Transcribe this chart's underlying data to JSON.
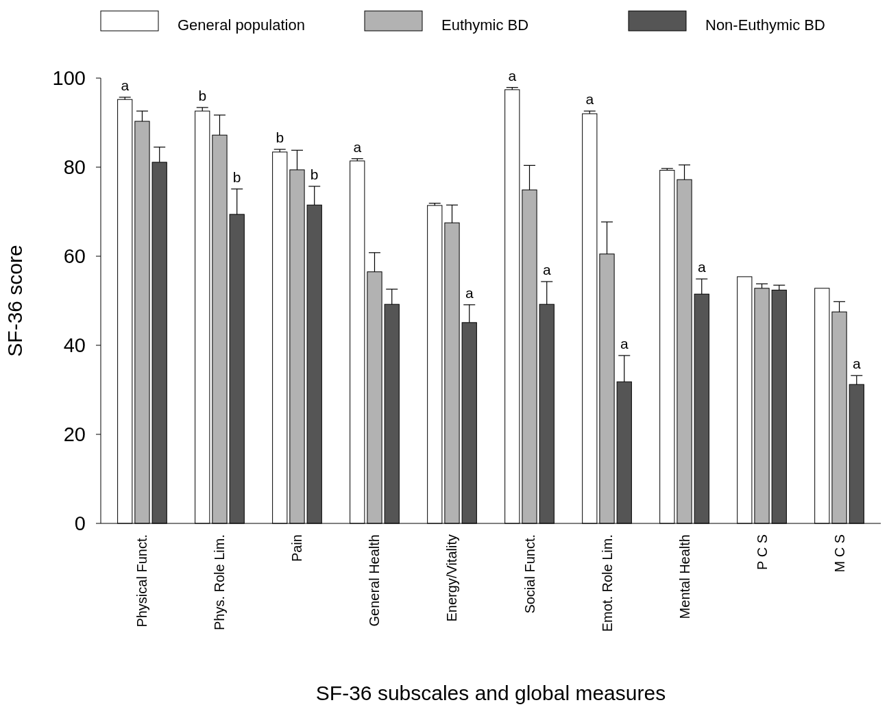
{
  "chart_data": {
    "type": "bar",
    "xlabel": "SF-36 subscales and global measures",
    "ylabel": "SF-36  score",
    "categories": [
      "Physical Funct.",
      "Phys. Role Lim.",
      "Pain",
      "General Health",
      "Energy/Vitality",
      "Social Funct.",
      "Emot. Role Lim.",
      "Mental Health",
      "P C S",
      "M C S"
    ],
    "series": [
      {
        "name": "General population",
        "color": "#ffffff",
        "values": [
          95.2,
          92.6,
          83.4,
          81.4,
          71.4,
          97.4,
          92,
          79.3,
          55.4,
          52.8
        ],
        "errors": [
          0.5,
          0.8,
          0.6,
          0.5,
          0.5,
          0.5,
          0.6,
          0.4,
          null,
          null
        ],
        "value_labels": [
          "a",
          "b",
          "b",
          "a",
          null,
          "a",
          "a",
          null,
          null,
          null
        ]
      },
      {
        "name": "Euthymic  BD",
        "color": "#b2b2b2",
        "values": [
          90.3,
          87.2,
          79.4,
          56.5,
          67.5,
          74.9,
          60.5,
          77.2,
          52.8,
          47.5
        ],
        "errors": [
          2.3,
          4.5,
          4.4,
          4.3,
          4,
          5.5,
          7.2,
          3.3,
          1,
          2.3
        ]
      },
      {
        "name": "Non-Euthymic  BD",
        "color": "#555555",
        "values": [
          81.1,
          69.4,
          71.5,
          49.2,
          45.1,
          49.2,
          31.8,
          51.5,
          52.4,
          31.2
        ],
        "errors": [
          3.4,
          5.7,
          4.2,
          3.4,
          4,
          5.1,
          5.9,
          3.4,
          1.1,
          2
        ],
        "value_labels": [
          null,
          "b",
          "b",
          null,
          "a",
          "a",
          "a",
          "a",
          null,
          "a"
        ]
      }
    ],
    "ylim": [
      0,
      100
    ],
    "yticks": [
      0,
      20,
      40,
      60,
      80,
      100
    ],
    "grid": false,
    "legend": "top"
  }
}
